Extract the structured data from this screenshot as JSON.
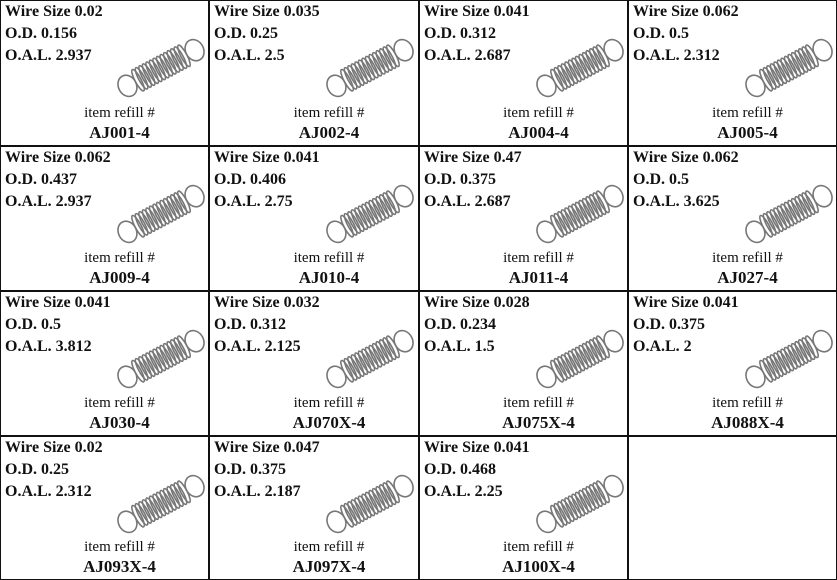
{
  "cells": [
    {
      "wire_size": "Wire Size 0.02",
      "od": "O.D. 0.156",
      "oal": "O.A.L. 2.937",
      "refill_label": "item refill #",
      "item": "AJ001-4"
    },
    {
      "wire_size": "Wire Size 0.035",
      "od": "O.D. 0.25",
      "oal": "O.A.L. 2.5",
      "refill_label": "item refill #",
      "item": "AJ002-4"
    },
    {
      "wire_size": "Wire Size 0.041",
      "od": "O.D. 0.312",
      "oal": "O.A.L. 2.687",
      "refill_label": "item refill #",
      "item": "AJ004-4"
    },
    {
      "wire_size": "Wire Size 0.062",
      "od": "O.D. 0.5",
      "oal": "O.A.L. 2.312",
      "refill_label": "item refill #",
      "item": "AJ005-4"
    },
    {
      "wire_size": "Wire Size 0.062",
      "od": "O.D. 0.437",
      "oal": "O.A.L. 2.937",
      "refill_label": "item refill #",
      "item": "AJ009-4"
    },
    {
      "wire_size": "Wire Size 0.041",
      "od": "O.D. 0.406",
      "oal": "O.A.L. 2.75",
      "refill_label": "item refill #",
      "item": "AJ010-4"
    },
    {
      "wire_size": "Wire Size 0.47",
      "od": "O.D. 0.375",
      "oal": "O.A.L. 2.687",
      "refill_label": "item refill #",
      "item": "AJ011-4"
    },
    {
      "wire_size": "Wire Size 0.062",
      "od": "O.D. 0.5",
      "oal": "O.A.L. 3.625",
      "refill_label": "item refill #",
      "item": "AJ027-4"
    },
    {
      "wire_size": "Wire Size 0.041",
      "od": "O.D. 0.5",
      "oal": "O.A.L. 3.812",
      "refill_label": "item refill #",
      "item": "AJ030-4"
    },
    {
      "wire_size": "Wire Size 0.032",
      "od": "O.D. 0.312",
      "oal": "O.A.L. 2.125",
      "refill_label": "item refill #",
      "item": "AJ070X-4"
    },
    {
      "wire_size": "Wire Size 0.028",
      "od": "O.D. 0.234",
      "oal": "O.A.L. 1.5",
      "refill_label": "item refill #",
      "item": "AJ075X-4"
    },
    {
      "wire_size": "Wire Size 0.041",
      "od": "O.D. 0.375",
      "oal": "O.A.L. 2",
      "refill_label": "item refill #",
      "item": "AJ088X-4"
    },
    {
      "wire_size": "Wire Size 0.02",
      "od": "O.D. 0.25",
      "oal": "O.A.L. 2.312",
      "refill_label": "item refill #",
      "item": "AJ093X-4"
    },
    {
      "wire_size": "Wire Size 0.047",
      "od": "O.D. 0.375",
      "oal": "O.A.L. 2.187",
      "refill_label": "item refill #",
      "item": "AJ097X-4"
    },
    {
      "wire_size": "Wire Size 0.041",
      "od": "O.D. 0.468",
      "oal": "O.A.L. 2.25",
      "refill_label": "item refill #",
      "item": "AJ100X-4"
    }
  ]
}
